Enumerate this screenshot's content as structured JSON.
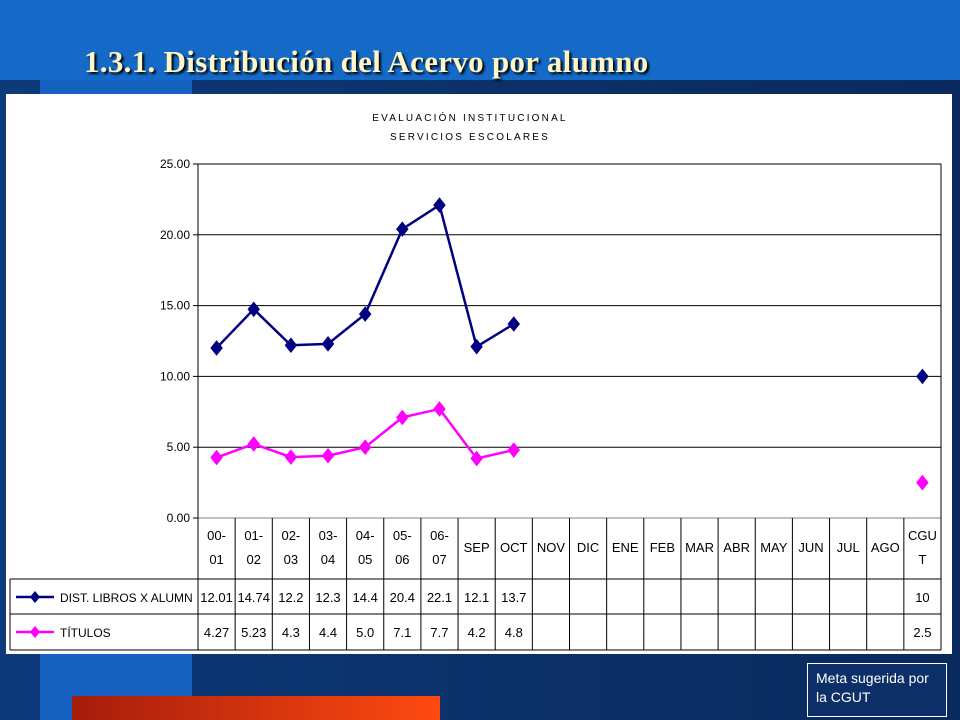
{
  "page": {
    "title": "1.3.1. Distribución  del Acervo por alumno",
    "note": "Meta sugerida por la CGUT"
  },
  "colors": {
    "series1": "#000080",
    "series2": "#ff00ff",
    "background_blue": "#1569c7",
    "title_text": "#fff6c8"
  },
  "chart_data": {
    "type": "line",
    "title": "EVALUACIÓN INSTITUCIONAL",
    "subtitle": "SERVICIOS ESCOLARES",
    "categories": [
      "00-01",
      "01-02",
      "02-03",
      "03-04",
      "04-05",
      "05-06",
      "06-07",
      "SEP",
      "OCT",
      "NOV",
      "DIC",
      "ENE",
      "FEB",
      "MAR",
      "ABR",
      "MAY",
      "JUN",
      "JUL",
      "AGO",
      "CGUT"
    ],
    "category_lines": [
      [
        "00-",
        "01"
      ],
      [
        "01-",
        "02"
      ],
      [
        "02-",
        "03"
      ],
      [
        "03-",
        "04"
      ],
      [
        "04-",
        "05"
      ],
      [
        "05-",
        "06"
      ],
      [
        "06-",
        "07"
      ],
      [
        "SEP"
      ],
      [
        "OCT"
      ],
      [
        "NOV"
      ],
      [
        "DIC"
      ],
      [
        "ENE"
      ],
      [
        "FEB"
      ],
      [
        "MAR"
      ],
      [
        "ABR"
      ],
      [
        "MAY"
      ],
      [
        "JUN"
      ],
      [
        "JUL"
      ],
      [
        "AGO"
      ],
      [
        "CGU",
        "T"
      ]
    ],
    "ylim": [
      0,
      25
    ],
    "yticks": [
      "0.00",
      "5.00",
      "10.00",
      "15.00",
      "20.00",
      "25.00"
    ],
    "grid": true,
    "legend": "data-table",
    "series": [
      {
        "name": "DIST. LIBROS X ALUMN",
        "color": "#000080",
        "values": [
          12.01,
          14.74,
          12.2,
          12.3,
          14.4,
          20.4,
          22.1,
          12.1,
          13.7,
          null,
          null,
          null,
          null,
          null,
          null,
          null,
          null,
          null,
          null,
          10
        ],
        "labels": [
          "12.01",
          "14.74",
          "12.2",
          "12.3",
          "14.4",
          "20.4",
          "22.1",
          "12.1",
          "13.7",
          "",
          "",
          "",
          "",
          "",
          "",
          "",
          "",
          "",
          "",
          "10"
        ]
      },
      {
        "name": "TÍTULOS",
        "color": "#ff00ff",
        "values": [
          4.27,
          5.23,
          4.3,
          4.4,
          5.0,
          7.1,
          7.7,
          4.2,
          4.8,
          null,
          null,
          null,
          null,
          null,
          null,
          null,
          null,
          null,
          null,
          2.5
        ],
        "labels": [
          "4.27",
          "5.23",
          "4.3",
          "4.4",
          "5.0",
          "7.1",
          "7.7",
          "4.2",
          "4.8",
          "",
          "",
          "",
          "",
          "",
          "",
          "",
          "",
          "",
          "",
          "2.5"
        ]
      }
    ]
  }
}
